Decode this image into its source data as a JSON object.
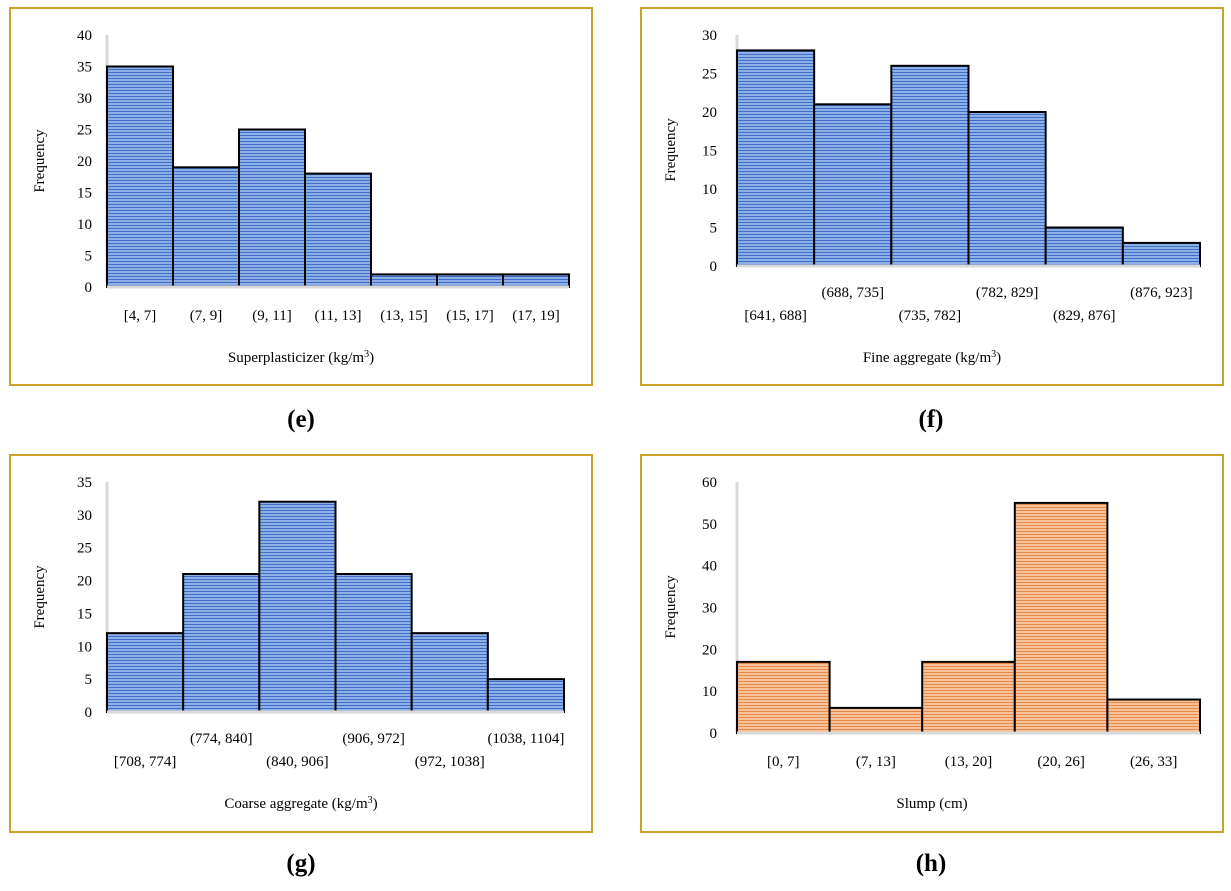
{
  "chart_data": [
    {
      "id": "e",
      "type": "bar",
      "panel_label": "(e)",
      "title": "",
      "xlabel": "Superplasticizer (kg/m",
      "xlabel_sup": "3",
      "xlabel_suffix": ")",
      "ylabel": "Frequency",
      "ylim": [
        0,
        40
      ],
      "ytick_step": 5,
      "color": "#4472c4",
      "categories": [
        "[4, 7]",
        "(7, 9]",
        "(9, 11]",
        "(11, 13]",
        "(13, 15]",
        "(15, 17]",
        "(17, 19]"
      ],
      "values": [
        35,
        19,
        25,
        18,
        2,
        2,
        2
      ],
      "label_layout": "single-row"
    },
    {
      "id": "f",
      "type": "bar",
      "panel_label": "(f)",
      "title": "",
      "xlabel": "Fine aggregate (kg/m",
      "xlabel_sup": "3",
      "xlabel_suffix": ")",
      "ylabel": "Frequency",
      "ylim": [
        0,
        30
      ],
      "ytick_step": 5,
      "color": "#4472c4",
      "categories": [
        "[641, 688]",
        "(688, 735]",
        "(735, 782]",
        "(782, 829]",
        "(829, 876]",
        "(876, 923]"
      ],
      "values": [
        28,
        21,
        26,
        20,
        5,
        3
      ],
      "label_layout": "staggered"
    },
    {
      "id": "g",
      "type": "bar",
      "panel_label": "(g)",
      "title": "",
      "xlabel": "Coarse aggregate (kg/m",
      "xlabel_sup": "3",
      "xlabel_suffix": ")",
      "ylabel": "Frequency",
      "ylim": [
        0,
        35
      ],
      "ytick_step": 5,
      "color": "#4472c4",
      "categories": [
        "[708, 774]",
        "(774, 840]",
        "(840, 906]",
        "(906, 972]",
        "(972, 1038]",
        "(1038, 1104]"
      ],
      "values": [
        12,
        21,
        32,
        21,
        12,
        5
      ],
      "label_layout": "staggered"
    },
    {
      "id": "h",
      "type": "bar",
      "panel_label": "(h)",
      "title": "",
      "xlabel": "Slump (cm)",
      "xlabel_sup": "",
      "xlabel_suffix": "",
      "ylabel": "Frequency",
      "ylim": [
        0,
        60
      ],
      "ytick_step": 10,
      "color": "#ed7d31",
      "categories": [
        "[0, 7]",
        "(7, 13]",
        "(13, 20]",
        "(20, 26]",
        "(26, 33]"
      ],
      "values": [
        17,
        6,
        17,
        55,
        8
      ],
      "label_layout": "single-row"
    }
  ]
}
